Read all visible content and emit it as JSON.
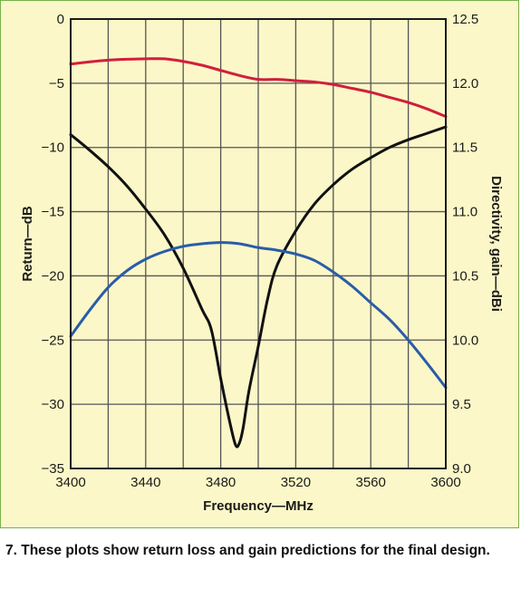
{
  "caption": "7. These plots show return loss and gain predictions for the final design.",
  "chart_data": {
    "type": "line",
    "xlabel": "Frequency—MHz",
    "ylabel_left": "Return—dB",
    "ylabel_right": "Directivity, gain—dBi",
    "xlim": [
      3400,
      3600
    ],
    "ylim_left": [
      -35,
      0
    ],
    "ylim_right": [
      9.0,
      12.5
    ],
    "x_ticks": [
      3400,
      3440,
      3480,
      3520,
      3560,
      3600
    ],
    "x_tick_labels": [
      "3400",
      "3440",
      "3480",
      "3520",
      "3560",
      "3600"
    ],
    "x_grid": [
      3400,
      3420,
      3440,
      3460,
      3480,
      3500,
      3520,
      3540,
      3560,
      3580,
      3600
    ],
    "y_ticks_left": [
      0,
      -5,
      -10,
      -15,
      -20,
      -25,
      -30,
      -35
    ],
    "y_tick_labels_left": [
      "0",
      "−5",
      "−10",
      "−15",
      "−20",
      "−25",
      "−30",
      "−35"
    ],
    "y_ticks_right": [
      12.5,
      12.0,
      11.5,
      11.0,
      10.5,
      10.0,
      9.5,
      9.0
    ],
    "y_tick_labels_right": [
      "12.5",
      "12.0",
      "11.5",
      "11.0",
      "10.5",
      "10.0",
      "9.5",
      "9.0"
    ],
    "grid": true,
    "colors": {
      "background": "#fbf7c8",
      "frame": "#79b04a",
      "grid": "#555555",
      "return_loss": "#111111",
      "directivity": "#d01f3c",
      "gain": "#2a5ca8"
    },
    "series": [
      {
        "key": "return_loss",
        "axis": "left",
        "color": "#111111",
        "x": [
          3400,
          3410,
          3420,
          3430,
          3440,
          3450,
          3460,
          3470,
          3475,
          3480,
          3485,
          3488,
          3490,
          3492,
          3495,
          3500,
          3505,
          3510,
          3520,
          3530,
          3540,
          3550,
          3560,
          3570,
          3580,
          3590,
          3600
        ],
        "y": [
          -9.0,
          -10.2,
          -11.5,
          -13.0,
          -14.8,
          -16.8,
          -19.4,
          -22.6,
          -24.2,
          -28.0,
          -31.5,
          -33.2,
          -33.0,
          -31.8,
          -29.0,
          -25.5,
          -21.8,
          -19.2,
          -16.5,
          -14.4,
          -12.9,
          -11.7,
          -10.8,
          -10.0,
          -9.4,
          -8.9,
          -8.4
        ]
      },
      {
        "key": "directivity",
        "axis": "right",
        "color": "#d01f3c",
        "x": [
          3400,
          3420,
          3440,
          3450,
          3460,
          3470,
          3480,
          3490,
          3500,
          3510,
          3520,
          3530,
          3540,
          3550,
          3560,
          3570,
          3580,
          3590,
          3600
        ],
        "y": [
          12.15,
          12.18,
          12.19,
          12.19,
          12.17,
          12.14,
          12.1,
          12.06,
          12.03,
          12.03,
          12.02,
          12.01,
          11.99,
          11.96,
          11.93,
          11.89,
          11.85,
          11.8,
          11.74
        ]
      },
      {
        "key": "gain",
        "axis": "right",
        "color": "#2a5ca8",
        "x": [
          3400,
          3410,
          3420,
          3430,
          3440,
          3450,
          3460,
          3470,
          3480,
          3490,
          3500,
          3510,
          3520,
          3530,
          3540,
          3550,
          3560,
          3570,
          3580,
          3590,
          3600
        ],
        "y": [
          10.03,
          10.23,
          10.41,
          10.54,
          10.63,
          10.69,
          10.73,
          10.75,
          10.76,
          10.75,
          10.72,
          10.7,
          10.67,
          10.62,
          10.53,
          10.42,
          10.29,
          10.16,
          10.0,
          9.82,
          9.63
        ]
      }
    ]
  }
}
